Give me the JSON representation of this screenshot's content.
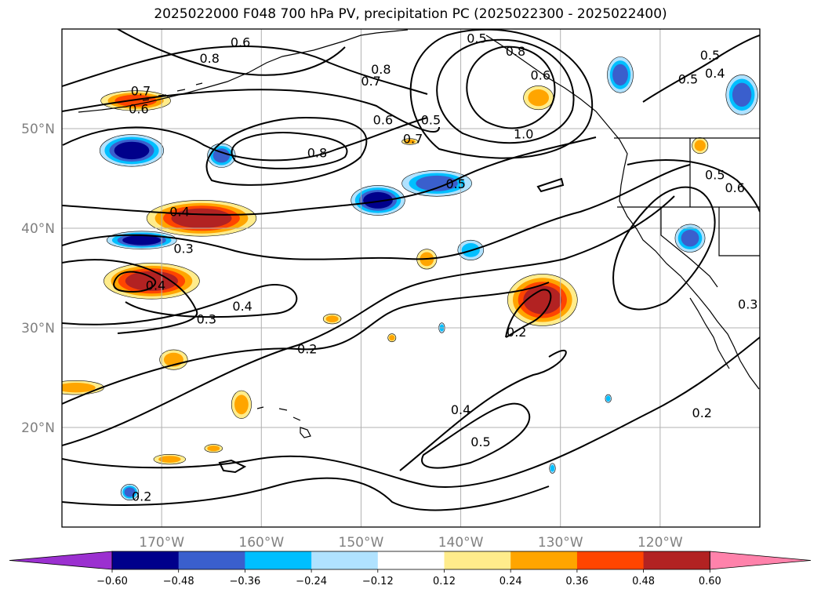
{
  "title": "2025022000 F048 700 hPa PV, precipitation PC (2025022300 - 2025022400)",
  "chart_data": {
    "type": "heatmap",
    "title": "2025022000 F048 700 hPa PV, precipitation PC (2025022300 - 2025022400)",
    "projection": "map",
    "extent": {
      "lon": [
        -180,
        -110
      ],
      "lat": [
        10,
        60
      ]
    },
    "grid": true,
    "lat_ticks": [
      {
        "value": 50,
        "label": "50°N"
      },
      {
        "value": 40,
        "label": "40°N"
      },
      {
        "value": 30,
        "label": "30°N"
      },
      {
        "value": 20,
        "label": "20°N"
      }
    ],
    "lon_ticks": [
      {
        "value": -170,
        "label": "170°W"
      },
      {
        "value": -160,
        "label": "160°W"
      },
      {
        "value": -150,
        "label": "150°W"
      },
      {
        "value": -140,
        "label": "140°W"
      },
      {
        "value": -130,
        "label": "130°W"
      },
      {
        "value": -120,
        "label": "120°W"
      }
    ],
    "colorbar": {
      "orientation": "horizontal",
      "levels": [
        -0.6,
        -0.48,
        -0.36,
        -0.24,
        -0.12,
        0.12,
        0.24,
        0.36,
        0.48,
        0.6
      ],
      "tick_labels": [
        "−0.60",
        "−0.48",
        "−0.36",
        "−0.24",
        "−0.12",
        "0.12",
        "0.24",
        "0.36",
        "0.48",
        "0.60"
      ],
      "colors": [
        "#9b30d0",
        "#00008b",
        "#3a5fcd",
        "#00bfff",
        "#b0e2ff",
        "#ffffff",
        "#ffec8b",
        "#ffa500",
        "#ff4500",
        "#b22222",
        "#ff82ab"
      ],
      "extend": "both"
    },
    "contour_labels": [
      {
        "text": "0.6",
        "lon": -162.1,
        "lat": 58.7
      },
      {
        "text": "0.8",
        "lon": -165.2,
        "lat": 57.1
      },
      {
        "text": "0.8",
        "lon": -148.0,
        "lat": 56.0
      },
      {
        "text": "0.7",
        "lon": -149.0,
        "lat": 54.8
      },
      {
        "text": "0.7",
        "lon": -172.1,
        "lat": 53.8
      },
      {
        "text": "0.6",
        "lon": -172.3,
        "lat": 52.0
      },
      {
        "text": "0.6",
        "lon": -147.8,
        "lat": 50.9
      },
      {
        "text": "0.5",
        "lon": -143.0,
        "lat": 50.9
      },
      {
        "text": "0.7",
        "lon": -144.8,
        "lat": 49.0
      },
      {
        "text": "0.8",
        "lon": -154.4,
        "lat": 47.6
      },
      {
        "text": "1.0",
        "lon": -133.7,
        "lat": 49.5
      },
      {
        "text": "0.5",
        "lon": -138.4,
        "lat": 59.1
      },
      {
        "text": "0.8",
        "lon": -134.5,
        "lat": 57.8
      },
      {
        "text": "0.6",
        "lon": -132.0,
        "lat": 55.4
      },
      {
        "text": "0.5",
        "lon": -115.0,
        "lat": 57.4
      },
      {
        "text": "0.4",
        "lon": -114.5,
        "lat": 55.6
      },
      {
        "text": "0.5",
        "lon": -117.2,
        "lat": 55.0
      },
      {
        "text": "0.5",
        "lon": -140.5,
        "lat": 44.5
      },
      {
        "text": "0.5",
        "lon": -114.5,
        "lat": 45.4
      },
      {
        "text": "0.6",
        "lon": -112.5,
        "lat": 44.1
      },
      {
        "text": "0.4",
        "lon": -168.2,
        "lat": 41.7
      },
      {
        "text": "0.3",
        "lon": -167.8,
        "lat": 38.0
      },
      {
        "text": "0.4",
        "lon": -170.6,
        "lat": 34.3
      },
      {
        "text": "0.4",
        "lon": -161.9,
        "lat": 32.2
      },
      {
        "text": "0.3",
        "lon": -165.5,
        "lat": 30.9
      },
      {
        "text": "0.2",
        "lon": -155.4,
        "lat": 27.9
      },
      {
        "text": "0.2",
        "lon": -134.4,
        "lat": 29.6
      },
      {
        "text": "0.3",
        "lon": -111.2,
        "lat": 32.4
      },
      {
        "text": "0.4",
        "lon": -140.0,
        "lat": 21.8
      },
      {
        "text": "0.5",
        "lon": -138.0,
        "lat": 18.6
      },
      {
        "text": "0.2",
        "lon": -115.8,
        "lat": 21.5
      },
      {
        "text": "0.2",
        "lon": -172.0,
        "lat": 13.1
      }
    ],
    "shaded_regions": [
      {
        "lon": -172.6,
        "lat": 52.8,
        "rx": 3.5,
        "ry": 1.0,
        "level": 0.36
      },
      {
        "lon": -173.0,
        "lat": 47.8,
        "rx": 3.2,
        "ry": 1.6,
        "level": -0.48
      },
      {
        "lon": -164.0,
        "lat": 47.3,
        "rx": 1.4,
        "ry": 1.2,
        "level": -0.36
      },
      {
        "lon": -166.0,
        "lat": 41.0,
        "rx": 5.5,
        "ry": 1.8,
        "level": 0.48
      },
      {
        "lon": -172.0,
        "lat": 38.8,
        "rx": 3.5,
        "ry": 0.9,
        "level": -0.48
      },
      {
        "lon": -171.0,
        "lat": 34.7,
        "rx": 4.8,
        "ry": 1.8,
        "level": 0.48
      },
      {
        "lon": -148.3,
        "lat": 42.8,
        "rx": 2.7,
        "ry": 1.5,
        "level": -0.48
      },
      {
        "lon": -142.4,
        "lat": 44.5,
        "rx": 3.5,
        "ry": 1.3,
        "level": -0.36
      },
      {
        "lon": -139.0,
        "lat": 37.8,
        "rx": 1.3,
        "ry": 1.0,
        "level": -0.24
      },
      {
        "lon": -143.4,
        "lat": 36.9,
        "rx": 1.0,
        "ry": 1.0,
        "level": 0.24
      },
      {
        "lon": -131.8,
        "lat": 32.8,
        "rx": 3.5,
        "ry": 2.6,
        "level": 0.48
      },
      {
        "lon": -132.2,
        "lat": 53.1,
        "rx": 1.5,
        "ry": 1.2,
        "level": 0.24
      },
      {
        "lon": -124.0,
        "lat": 55.4,
        "rx": 1.3,
        "ry": 1.8,
        "level": -0.36
      },
      {
        "lon": -111.8,
        "lat": 53.4,
        "rx": 1.6,
        "ry": 2.0,
        "level": -0.36
      },
      {
        "lon": -117.0,
        "lat": 39.0,
        "rx": 1.5,
        "ry": 1.4,
        "level": -0.36
      },
      {
        "lon": -116.0,
        "lat": 48.3,
        "rx": 0.8,
        "ry": 0.8,
        "level": 0.24
      },
      {
        "lon": -152.9,
        "lat": 30.9,
        "rx": 0.9,
        "ry": 0.5,
        "level": 0.24
      },
      {
        "lon": -178.6,
        "lat": 24.0,
        "rx": 2.8,
        "ry": 0.7,
        "level": 0.24
      },
      {
        "lon": -168.8,
        "lat": 26.8,
        "rx": 1.4,
        "ry": 1.0,
        "level": 0.24
      },
      {
        "lon": -162.0,
        "lat": 22.3,
        "rx": 1.0,
        "ry": 1.4,
        "level": 0.24
      },
      {
        "lon": -169.2,
        "lat": 16.8,
        "rx": 1.6,
        "ry": 0.5,
        "level": 0.24
      },
      {
        "lon": -164.8,
        "lat": 17.9,
        "rx": 0.9,
        "ry": 0.4,
        "level": 0.24
      },
      {
        "lon": -173.2,
        "lat": 13.5,
        "rx": 0.9,
        "ry": 0.8,
        "level": -0.36
      },
      {
        "lon": -146.9,
        "lat": 29.0,
        "rx": 0.4,
        "ry": 0.4,
        "level": 0.24
      },
      {
        "lon": -141.9,
        "lat": 30.0,
        "rx": 0.3,
        "ry": 0.5,
        "level": -0.24
      },
      {
        "lon": -125.2,
        "lat": 22.9,
        "rx": 0.3,
        "ry": 0.4,
        "level": -0.24
      },
      {
        "lon": -130.8,
        "lat": 15.9,
        "rx": 0.3,
        "ry": 0.5,
        "level": -0.24
      },
      {
        "lon": -145.1,
        "lat": 48.7,
        "rx": 0.8,
        "ry": 0.3,
        "level": 0.24
      }
    ]
  }
}
